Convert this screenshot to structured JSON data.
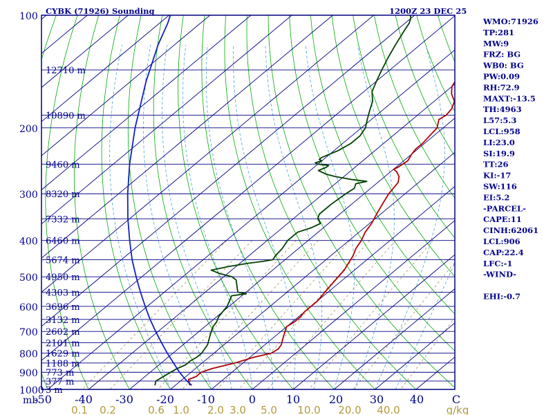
{
  "header": {
    "title": "CYBK (71926) Sounding",
    "datetime": "1200Z 23 DEC 25"
  },
  "colors": {
    "frame": "#000080",
    "isobar": "#000080",
    "isotherm": "#000080",
    "dry_adiabat": "#00aa00",
    "moist_adiabat": "#4aa3d6",
    "mixing_ratio": "#a08c50",
    "temperature": "#b00000",
    "dewpoint": "#004000",
    "parcel": "#1020c0"
  },
  "chart_data": {
    "type": "line",
    "title": "CYBK (71926) Sounding",
    "xlabel": "",
    "ylabel": "mb",
    "x_ticks": [
      -50,
      -40,
      -30,
      -20,
      -10,
      0,
      10,
      20,
      30,
      40
    ],
    "x_tick_labels": [
      "-50",
      "-40",
      "-30",
      "-20",
      "-10",
      "0",
      "10",
      "20",
      "30",
      "40",
      "C"
    ],
    "pressure_ticks": [
      100,
      200,
      300,
      400,
      500,
      600,
      700,
      800,
      900,
      1000
    ],
    "pressure_unit": "mb",
    "mixing_ratio_labels": [
      "0.1",
      "0.2",
      "0.6",
      "1.0",
      "2.0",
      "3.0",
      "5.0",
      "10.0",
      "20.0",
      "40.0"
    ],
    "mixing_ratio_unit": "g/kg",
    "heights": [
      {
        "p": 140,
        "label": "12710 m"
      },
      {
        "p": 185,
        "label": "10890 m"
      },
      {
        "p": 250,
        "label": "9460 m"
      },
      {
        "p": 300,
        "label": "8320 m"
      },
      {
        "p": 350,
        "label": "7332 m"
      },
      {
        "p": 400,
        "label": "6460 m"
      },
      {
        "p": 450,
        "label": "5674 m"
      },
      {
        "p": 500,
        "label": "4950 m"
      },
      {
        "p": 550,
        "label": "4303 m"
      },
      {
        "p": 600,
        "label": "3696 m"
      },
      {
        "p": 650,
        "label": "3132 m"
      },
      {
        "p": 700,
        "label": "2602 m"
      },
      {
        "p": 750,
        "label": "2101 m"
      },
      {
        "p": 800,
        "label": "1629 m"
      },
      {
        "p": 850,
        "label": "1188 m"
      },
      {
        "p": 900,
        "label": "773 m"
      },
      {
        "p": 950,
        "label": "377 m"
      },
      {
        "p": 1000,
        "label": "3 m"
      }
    ],
    "series": [
      {
        "key": "temperature",
        "points": [
          [
            975,
            -16.5
          ],
          [
            940,
            -18.5
          ],
          [
            925,
            -17.5
          ],
          [
            900,
            -17.5
          ],
          [
            880,
            -16
          ],
          [
            850,
            -12
          ],
          [
            820,
            -9
          ],
          [
            800,
            -6
          ],
          [
            780,
            -5.5
          ],
          [
            760,
            -6
          ],
          [
            740,
            -7
          ],
          [
            720,
            -8
          ],
          [
            700,
            -9
          ],
          [
            680,
            -10
          ],
          [
            660,
            -9.5
          ],
          [
            640,
            -9.5
          ],
          [
            620,
            -10
          ],
          [
            600,
            -10
          ],
          [
            580,
            -10
          ],
          [
            560,
            -10.5
          ],
          [
            540,
            -11
          ],
          [
            520,
            -11.5
          ],
          [
            500,
            -12
          ],
          [
            480,
            -12.5
          ],
          [
            460,
            -13.5
          ],
          [
            440,
            -14.5
          ],
          [
            420,
            -16
          ],
          [
            400,
            -17
          ],
          [
            380,
            -18.5
          ],
          [
            360,
            -19.5
          ],
          [
            340,
            -21
          ],
          [
            320,
            -22.5
          ],
          [
            300,
            -24
          ],
          [
            280,
            -25
          ],
          [
            270,
            -26.5
          ],
          [
            262,
            -28.5
          ],
          [
            258,
            -30
          ],
          [
            255,
            -29.5
          ],
          [
            245,
            -29
          ],
          [
            235,
            -30
          ],
          [
            228,
            -30.5
          ],
          [
            220,
            -30.5
          ],
          [
            210,
            -31
          ],
          [
            200,
            -31.5
          ],
          [
            190,
            -33.5
          ],
          [
            185,
            -33
          ],
          [
            178,
            -33.5
          ],
          [
            170,
            -35
          ],
          [
            162,
            -38
          ],
          [
            155,
            -40
          ],
          [
            148,
            -41
          ],
          [
            142,
            -42
          ],
          [
            136,
            -44
          ],
          [
            130,
            -47
          ],
          [
            120,
            -49
          ],
          [
            115,
            -51
          ],
          [
            108,
            -54
          ],
          [
            102,
            -56
          ],
          [
            100,
            -57
          ]
        ]
      },
      {
        "key": "dewpoint",
        "points": [
          [
            975,
            -25
          ],
          [
            950,
            -26
          ],
          [
            925,
            -25.5
          ],
          [
            900,
            -25
          ],
          [
            880,
            -24.5
          ],
          [
            860,
            -23.5
          ],
          [
            840,
            -23.5
          ],
          [
            820,
            -23
          ],
          [
            800,
            -23
          ],
          [
            780,
            -23.5
          ],
          [
            760,
            -24
          ],
          [
            740,
            -25
          ],
          [
            720,
            -26
          ],
          [
            700,
            -27
          ],
          [
            680,
            -28
          ],
          [
            660,
            -28.5
          ],
          [
            640,
            -29.5
          ],
          [
            620,
            -30
          ],
          [
            600,
            -30.5
          ],
          [
            580,
            -31.5
          ],
          [
            562,
            -32.5
          ],
          [
            555,
            -29.5
          ],
          [
            550,
            -32
          ],
          [
            540,
            -33
          ],
          [
            520,
            -35
          ],
          [
            510,
            -36
          ],
          [
            500,
            -38
          ],
          [
            490,
            -42
          ],
          [
            480,
            -45
          ],
          [
            470,
            -42
          ],
          [
            460,
            -38
          ],
          [
            455,
            -35
          ],
          [
            450,
            -33
          ],
          [
            440,
            -33.5
          ],
          [
            420,
            -34
          ],
          [
            400,
            -35
          ],
          [
            380,
            -35
          ],
          [
            370,
            -33
          ],
          [
            360,
            -32
          ],
          [
            350,
            -34
          ],
          [
            340,
            -35
          ],
          [
            320,
            -35
          ],
          [
            300,
            -34.5
          ],
          [
            290,
            -34
          ],
          [
            282,
            -35
          ],
          [
            278,
            -33
          ],
          [
            275,
            -37
          ],
          [
            270,
            -42
          ],
          [
            266,
            -45
          ],
          [
            260,
            -48
          ],
          [
            255,
            -47
          ],
          [
            252,
            -47
          ],
          [
            250,
            -50
          ],
          [
            248,
            -51
          ],
          [
            245,
            -50
          ],
          [
            243,
            -51
          ],
          [
            240,
            -51
          ],
          [
            230,
            -49
          ],
          [
            220,
            -48
          ],
          [
            210,
            -48
          ],
          [
            200,
            -49
          ],
          [
            190,
            -51
          ],
          [
            180,
            -53
          ],
          [
            170,
            -55
          ],
          [
            160,
            -58
          ],
          [
            150,
            -60
          ],
          [
            140,
            -62
          ],
          [
            130,
            -64
          ],
          [
            120,
            -66
          ],
          [
            110,
            -68
          ],
          [
            105,
            -69
          ],
          [
            102,
            -70
          ],
          [
            100,
            -71
          ]
        ]
      },
      {
        "key": "parcel",
        "points": [
          [
            975,
            -16
          ],
          [
            950,
            -18.4
          ],
          [
            925,
            -20.6
          ],
          [
            900,
            -22.8
          ],
          [
            850,
            -27
          ],
          [
            800,
            -31.4
          ],
          [
            750,
            -35.9
          ],
          [
            700,
            -40.6
          ],
          [
            650,
            -45.5
          ],
          [
            600,
            -50.5
          ],
          [
            550,
            -55.8
          ],
          [
            500,
            -61.4
          ],
          [
            450,
            -67.4
          ],
          [
            400,
            -73.6
          ],
          [
            350,
            -80.4
          ],
          [
            300,
            -87.8
          ],
          [
            250,
            -96
          ],
          [
            200,
            -105.3
          ],
          [
            150,
            -116.3
          ],
          [
            120,
            -124
          ],
          [
            105,
            -128
          ],
          [
            100,
            -129.7
          ]
        ]
      }
    ]
  },
  "side_panel": {
    "lines": [
      "WMO:71926",
      "TP:281",
      "MW:9",
      "FRZ: BG",
      "WB0: BG",
      "PW:0.09",
      "RH:72.9",
      "MAXT:-13.5",
      "TH:4963",
      "L57:5.3",
      "LCL:958",
      "LI:23.0",
      "SI:19.9",
      "TT:26",
      "KI:-17",
      "SW:116",
      "EI:5.2",
      "-PARCEL-",
      "CAPE:11",
      "CINH:62061",
      "LCL:906",
      "CAP:22.4",
      "LFC:-1",
      "-WIND-",
      "",
      "EHI:-0.7"
    ]
  }
}
